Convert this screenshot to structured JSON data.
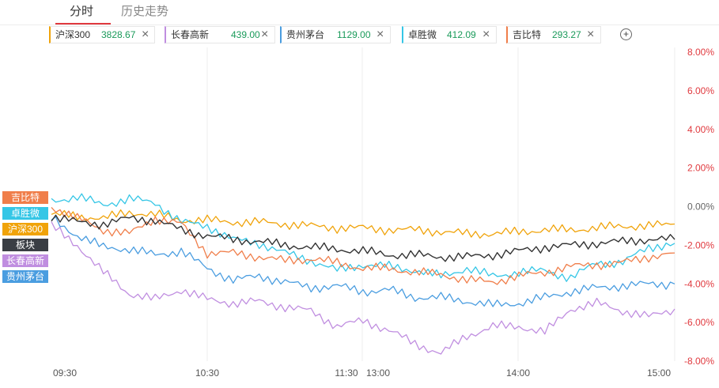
{
  "tabs": [
    {
      "label": "分时",
      "active": true
    },
    {
      "label": "历史走势",
      "active": false
    }
  ],
  "legend": [
    {
      "name": "沪深300",
      "value": "3828.67",
      "color": "#f0a30a"
    },
    {
      "name": "长春高新",
      "value": "439.00",
      "color": "#c08ee0"
    },
    {
      "name": "贵州茅台",
      "value": "1129.00",
      "color": "#4a9de0"
    },
    {
      "name": "卓胜微",
      "value": "412.09",
      "color": "#35c6e6"
    },
    {
      "name": "吉比特",
      "value": "293.27",
      "color": "#f07e4a"
    }
  ],
  "add_icon": "plus-circle-icon",
  "close_icon": "close-icon",
  "side_tags": [
    {
      "label": "吉比特",
      "color": "#f07e4a"
    },
    {
      "label": "卓胜微",
      "color": "#35c6e6"
    },
    {
      "label": "沪深300",
      "color": "#f0a30a"
    },
    {
      "label": "板块",
      "color": "#3a3e44"
    },
    {
      "label": "长春高新",
      "color": "#c08ee0"
    },
    {
      "label": "贵州茅台",
      "color": "#4a9de0"
    }
  ],
  "chart_data": {
    "type": "line",
    "ylim": [
      -8,
      8
    ],
    "yticks": [
      "8.00%",
      "6.00%",
      "4.00%",
      "2.00%",
      "0.00%",
      "-2.00%",
      "-4.00%",
      "-6.00%",
      "-8.00%"
    ],
    "xticks": [
      "09:30",
      "10:30",
      "11:30",
      "13:00",
      "14:00",
      "15:00"
    ],
    "grid": "vertical",
    "colors": {
      "positive": "#e0393e",
      "neutral": "#666666",
      "negative": "#e0393e"
    },
    "x": [
      0,
      10,
      20,
      30,
      40,
      50,
      60,
      70,
      80,
      90,
      100,
      110,
      120,
      130,
      140,
      150,
      160,
      170,
      180,
      190,
      200,
      210,
      220,
      230,
      240
    ],
    "series": [
      {
        "name": "沪深300",
        "color": "#f0a30a",
        "width": 1.3,
        "values": [
          -0.4,
          -0.5,
          -0.6,
          -0.3,
          -0.4,
          -0.7,
          -0.7,
          -0.8,
          -0.8,
          -0.9,
          -1.0,
          -1.1,
          -1.1,
          -1.2,
          -1.2,
          -1.3,
          -1.4,
          -1.4,
          -1.3,
          -1.2,
          -1.2,
          -1.1,
          -1.0,
          -1.0,
          -0.9
        ]
      },
      {
        "name": "长春高新",
        "color": "#c08ee0",
        "width": 1.3,
        "values": [
          -1.0,
          -2.0,
          -3.4,
          -4.5,
          -4.8,
          -4.3,
          -4.8,
          -5.0,
          -4.9,
          -5.2,
          -5.4,
          -6.2,
          -5.9,
          -6.4,
          -7.1,
          -7.6,
          -6.7,
          -6.2,
          -6.2,
          -6.5,
          -5.3,
          -5.0,
          -5.4,
          -5.7,
          -5.3
        ]
      },
      {
        "name": "贵州茅台",
        "color": "#4a9de0",
        "width": 1.3,
        "values": [
          -0.6,
          -1.5,
          -2.1,
          -2.2,
          -2.5,
          -2.3,
          -3.2,
          -3.8,
          -3.6,
          -3.9,
          -4.2,
          -4.1,
          -4.4,
          -4.3,
          -4.7,
          -4.7,
          -4.9,
          -5.1,
          -5.0,
          -4.7,
          -4.4,
          -4.2,
          -4.1,
          -4.0,
          -4.0
        ]
      },
      {
        "name": "卓胜微",
        "color": "#35c6e6",
        "width": 1.3,
        "values": [
          0.3,
          0.5,
          0.1,
          0.4,
          0.2,
          -0.8,
          -1.0,
          -1.7,
          -1.9,
          -2.4,
          -2.8,
          -3.3,
          -3.0,
          -3.1,
          -3.3,
          -3.6,
          -3.2,
          -3.6,
          -3.4,
          -3.3,
          -3.7,
          -2.9,
          -2.9,
          -2.1,
          -1.9
        ]
      },
      {
        "name": "吉比特",
        "color": "#f07e4a",
        "width": 1.3,
        "values": [
          0.0,
          -0.6,
          -1.2,
          -1.4,
          -0.6,
          -0.9,
          -2.4,
          -2.4,
          -2.6,
          -2.8,
          -2.7,
          -2.9,
          -3.2,
          -3.2,
          -3.4,
          -3.5,
          -3.8,
          -3.9,
          -3.6,
          -3.4,
          -3.1,
          -3.0,
          -2.9,
          -2.6,
          -2.4
        ]
      },
      {
        "name": "板块",
        "color": "#333333",
        "width": 1.4,
        "values": [
          -0.5,
          -0.8,
          -0.9,
          -0.6,
          -0.7,
          -1.2,
          -1.5,
          -1.7,
          -1.8,
          -2.0,
          -2.1,
          -2.2,
          -2.3,
          -2.5,
          -2.5,
          -2.6,
          -2.6,
          -2.5,
          -2.3,
          -2.1,
          -2.0,
          -1.9,
          -1.8,
          -1.7,
          -1.7
        ]
      }
    ]
  }
}
